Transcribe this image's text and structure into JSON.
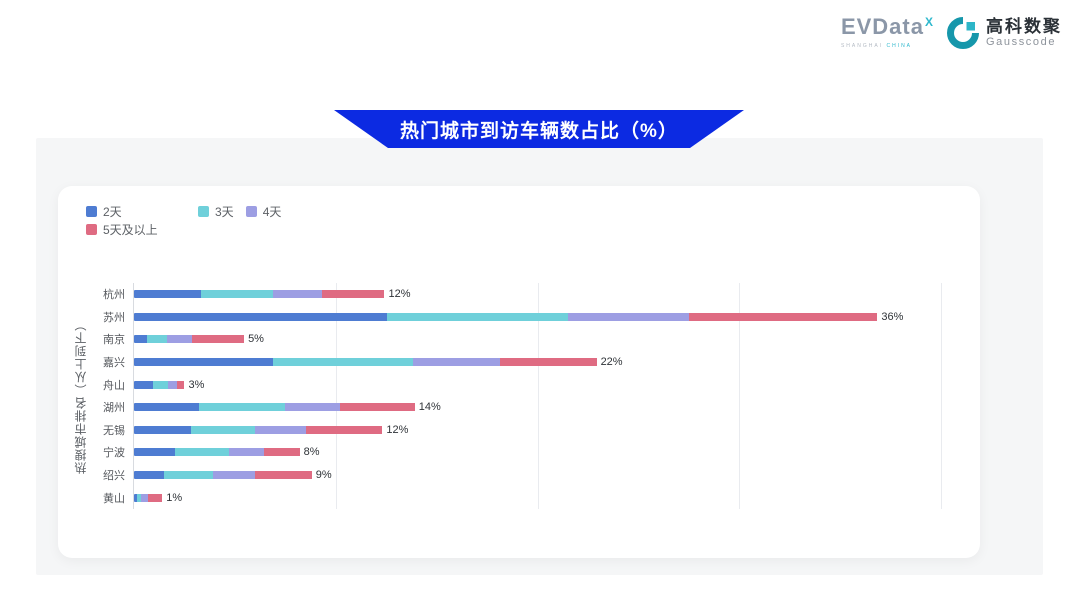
{
  "header": {
    "evdata": {
      "name": "EVData",
      "sup": "X",
      "sub_gray": "SHANGHAI",
      "sub_teal": "CHINA"
    },
    "gausscode": {
      "cn": "高科数聚",
      "en": "Gausscode",
      "icon_color_dark": "#1697ab",
      "icon_color_light": "#2db6c8"
    }
  },
  "banner": {
    "title": "热门城市到访车辆数占比（%）",
    "color": "#0c2ae2"
  },
  "chart_data": {
    "type": "bar",
    "orientation": "horizontal",
    "stacked": true,
    "title": "热门城市到访车辆数占比（%）",
    "ylabel": "热搜城市排名（从上到下）",
    "xlabel": "",
    "xlim": [
      0,
      40
    ],
    "grid_interval": 10,
    "grid": true,
    "legend_position": "top-left",
    "categories": [
      "杭州",
      "苏州",
      "南京",
      "嘉兴",
      "舟山",
      "湖州",
      "无锡",
      "宁波",
      "绍兴",
      "黄山"
    ],
    "total_labels": [
      "12%",
      "36%",
      "5%",
      "22%",
      "3%",
      "14%",
      "12%",
      "8%",
      "9%",
      "1%"
    ],
    "totals": [
      12,
      36,
      5,
      22,
      3,
      14,
      12,
      8,
      9,
      1
    ],
    "series": [
      {
        "name": "2天",
        "color": "#4e7cd2",
        "values": [
          3.3,
          12.5,
          0.65,
          6.9,
          0.95,
          3.2,
          2.8,
          2.05,
          1.5,
          0.15
        ]
      },
      {
        "name": "3天",
        "color": "#6fd0da",
        "values": [
          3.6,
          9.0,
          1.0,
          6.9,
          0.75,
          4.3,
          3.2,
          2.65,
          2.4,
          0.2
        ]
      },
      {
        "name": "4天",
        "color": "#9d9ee3",
        "values": [
          2.4,
          6.0,
          1.2,
          4.3,
          0.45,
          2.7,
          2.5,
          1.75,
          2.1,
          0.35
        ]
      },
      {
        "name": "5天及以上",
        "color": "#df6b82",
        "values": [
          3.1,
          9.3,
          2.6,
          4.8,
          0.35,
          3.7,
          3.8,
          1.75,
          2.8,
          0.7
        ]
      }
    ]
  }
}
